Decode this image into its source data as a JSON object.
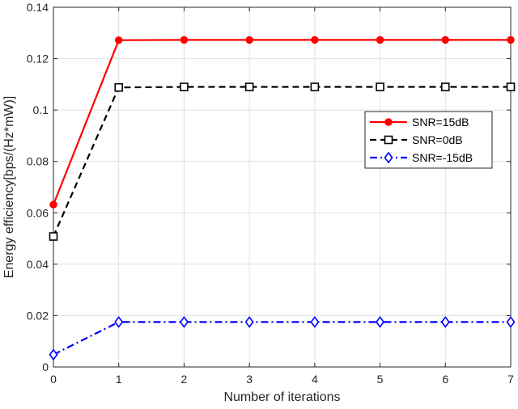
{
  "chart_data": {
    "type": "line",
    "title": "",
    "xlabel": "Number of iterations",
    "ylabel": "Energy efficiency[bps/(Hz*mW)]",
    "x": [
      0,
      1,
      2,
      3,
      4,
      5,
      6,
      7
    ],
    "xlim": [
      0,
      7
    ],
    "ylim": [
      0,
      0.14
    ],
    "xticks": [
      "0",
      "1",
      "2",
      "3",
      "4",
      "5",
      "6",
      "7"
    ],
    "yticks": [
      "0",
      "0.02",
      "0.04",
      "0.06",
      "0.08",
      "0.1",
      "0.12",
      "0.14"
    ],
    "grid": true,
    "legend_position": "right",
    "series": [
      {
        "name": "SNR=15dB",
        "color": "#ff0000",
        "line": "solid",
        "marker": "filled-circle",
        "values": [
          0.0632,
          0.1272,
          0.1273,
          0.1273,
          0.1273,
          0.1273,
          0.1273,
          0.1273
        ]
      },
      {
        "name": "SNR=0dB",
        "color": "#000000",
        "line": "dashed",
        "marker": "square",
        "values": [
          0.0508,
          0.1088,
          0.109,
          0.109,
          0.109,
          0.109,
          0.109,
          0.109
        ]
      },
      {
        "name": "SNR=-15dB",
        "color": "#0000ff",
        "line": "dash-dot",
        "marker": "diamond",
        "values": [
          0.0048,
          0.0175,
          0.0175,
          0.0175,
          0.0175,
          0.0175,
          0.0175,
          0.0175
        ]
      }
    ]
  }
}
